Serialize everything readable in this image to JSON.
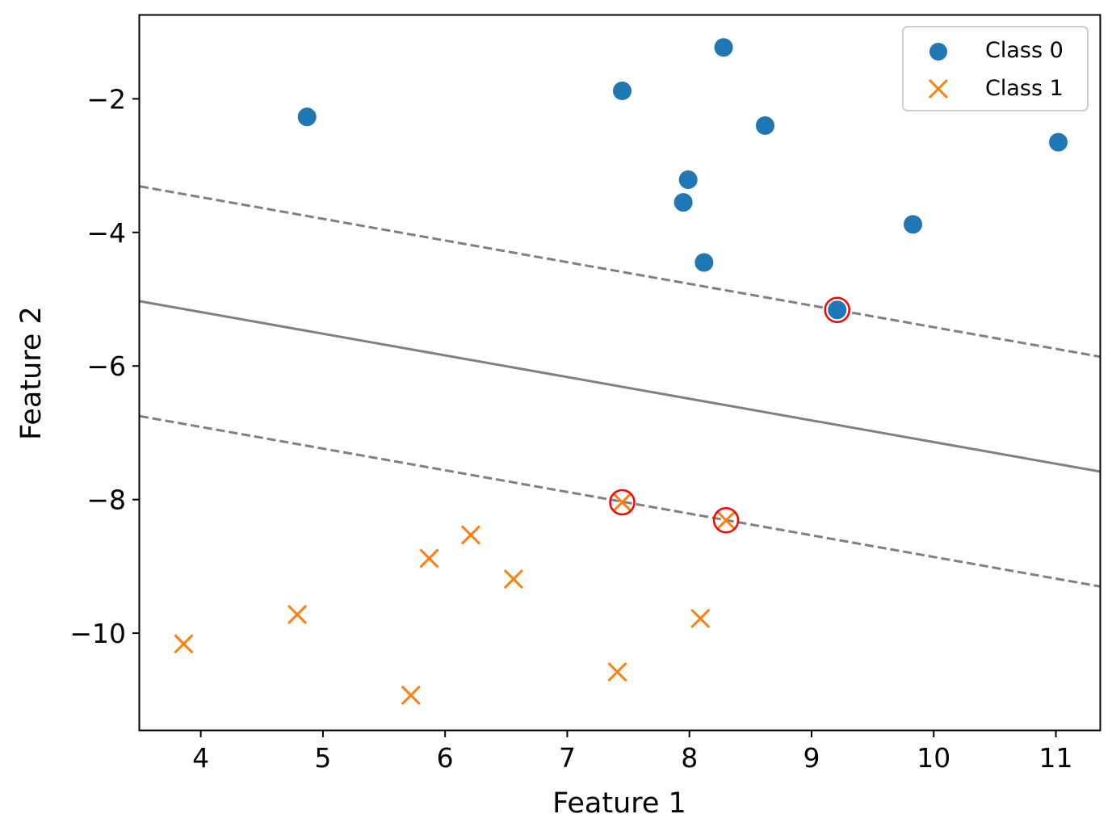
{
  "chart_data": {
    "type": "scatter",
    "title": "",
    "xlabel": "Feature 1",
    "ylabel": "Feature 2",
    "xlim": [
      3.5,
      11.36
    ],
    "ylim": [
      -11.45,
      -0.75
    ],
    "xticks": [
      4,
      5,
      6,
      7,
      8,
      9,
      10,
      11
    ],
    "yticks": [
      -10,
      -8,
      -6,
      -4,
      -2
    ],
    "ytick_labels": [
      "−10",
      "−8",
      "−6",
      "−4",
      "−2"
    ],
    "grid": false,
    "legend_position": "top-right",
    "series": [
      {
        "name": "Class 0",
        "marker": "circle",
        "color": "#1f77b4",
        "points": [
          [
            4.87,
            -2.27
          ],
          [
            7.45,
            -1.88
          ],
          [
            8.28,
            -1.23
          ],
          [
            8.62,
            -2.4
          ],
          [
            7.99,
            -3.21
          ],
          [
            7.95,
            -3.55
          ],
          [
            8.12,
            -4.45
          ],
          [
            9.21,
            -5.16
          ],
          [
            9.83,
            -3.88
          ],
          [
            11.02,
            -2.65
          ]
        ]
      },
      {
        "name": "Class 1",
        "marker": "x",
        "color": "#ff7f0e",
        "points": [
          [
            3.86,
            -10.16
          ],
          [
            4.79,
            -9.72
          ],
          [
            5.72,
            -10.93
          ],
          [
            5.87,
            -8.88
          ],
          [
            6.21,
            -8.53
          ],
          [
            6.56,
            -9.19
          ],
          [
            7.41,
            -10.58
          ],
          [
            7.45,
            -8.04
          ],
          [
            8.09,
            -9.78
          ],
          [
            8.3,
            -8.31
          ]
        ]
      }
    ],
    "decision_boundary": {
      "color": "#808080",
      "solid": [
        [
          3.5,
          -5.03
        ],
        [
          11.36,
          -7.58
        ]
      ],
      "upper_margin": [
        [
          3.5,
          -3.31
        ],
        [
          11.36,
          -5.86
        ]
      ],
      "lower_margin": [
        [
          3.5,
          -6.75
        ],
        [
          11.36,
          -9.3
        ]
      ]
    },
    "support_vectors": {
      "color": "#ff0000",
      "points": [
        [
          9.21,
          -5.16
        ],
        [
          7.45,
          -8.04
        ],
        [
          8.3,
          -8.31
        ]
      ]
    }
  }
}
